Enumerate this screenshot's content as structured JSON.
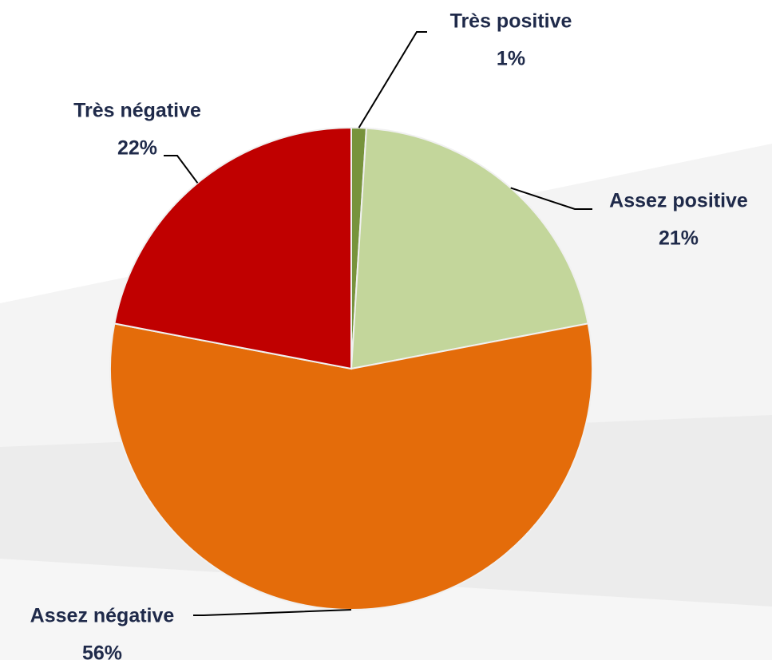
{
  "chart_data": {
    "type": "pie",
    "categories": [
      "Très positive",
      "Assez positive",
      "Assez négative",
      "Très négative"
    ],
    "values": [
      1,
      21,
      56,
      22
    ],
    "value_labels": [
      "1%",
      "21%",
      "56%",
      "22%"
    ],
    "colors": [
      "#77933c",
      "#c3d69b",
      "#e46c0a",
      "#c00000"
    ]
  }
}
